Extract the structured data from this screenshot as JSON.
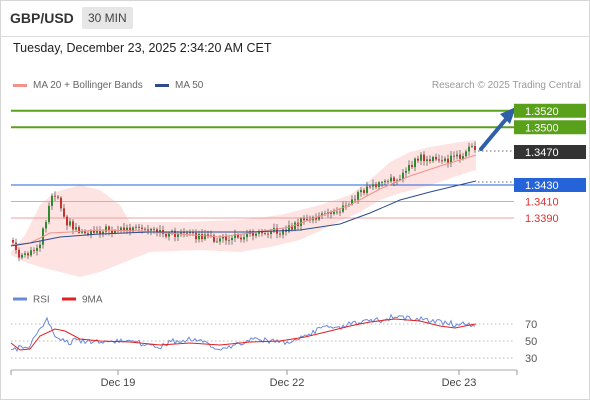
{
  "header": {
    "pair": "GBP/USD",
    "timeframe": "30 MIN"
  },
  "datetime": "Tuesday, December 23, 2025 2:34:20 AM CET",
  "legend": {
    "items": [
      {
        "label": "MA 20 + Bollinger Bands",
        "color": "#f4908a"
      },
      {
        "label": "MA 50",
        "color": "#2c4c8c"
      }
    ],
    "credit": "Research © 2025 Trading Central"
  },
  "chart_data": [
    {
      "type": "candlestick",
      "title": "GBP/USD 30 MIN",
      "x_tick_labels": [
        "Dec 19",
        "Dec 22",
        "Dec 23"
      ],
      "price_labels": [
        {
          "label": "1.3520",
          "value": 1.352,
          "kind": "target",
          "color": "#5aa11b"
        },
        {
          "label": "1.3500",
          "value": 1.35,
          "kind": "target",
          "color": "#5aa11b"
        },
        {
          "label": "1.3470",
          "value": 1.347,
          "kind": "last-price",
          "color": "#333333"
        },
        {
          "label": "1.3430",
          "value": 1.343,
          "kind": "pivot",
          "color": "#2563d8"
        },
        {
          "label": "1.3410",
          "value": 1.341,
          "kind": "support",
          "color": "#e03030"
        },
        {
          "label": "1.3390",
          "value": 1.339,
          "kind": "support",
          "color": "#e03030"
        }
      ],
      "price_range": [
        1.3325,
        1.3535
      ],
      "series": [
        {
          "name": "MA 20 + Bollinger Bands",
          "color": "#f4908a"
        },
        {
          "name": "MA 50",
          "color": "#2c4c8c"
        }
      ],
      "annotation": "bullish arrow toward 1.3520"
    },
    {
      "type": "line",
      "legend": [
        "RSI",
        "9MA"
      ],
      "y_ticks": [
        "70",
        "50",
        "30"
      ],
      "ylim": [
        18,
        82
      ],
      "series": [
        {
          "name": "RSI",
          "color": "#6a8ad8"
        },
        {
          "name": "9MA",
          "color": "#e02020"
        }
      ]
    }
  ]
}
